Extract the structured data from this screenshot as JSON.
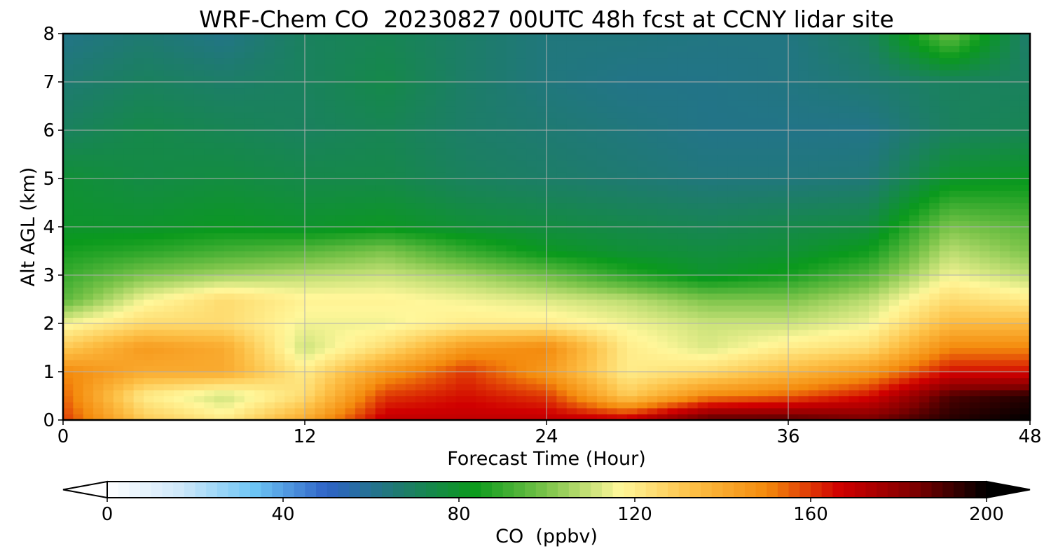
{
  "chart_data": {
    "type": "heatmap",
    "title": "WRF-Chem CO  20230827 00UTC 48h fcst at CCNY lidar site",
    "xlabel": "Forecast Time (Hour)",
    "ylabel": "Alt AGL (km)",
    "xlim": [
      0,
      48
    ],
    "ylim": [
      0,
      8
    ],
    "x_ticks": [
      "0",
      "12",
      "24",
      "36",
      "48"
    ],
    "y_ticks": [
      "0",
      "1",
      "2",
      "3",
      "4",
      "5",
      "6",
      "7",
      "8"
    ],
    "grid": true,
    "colorbar": {
      "label": "CO  (ppbv)",
      "range": [
        0,
        200
      ],
      "ticks": [
        "0",
        "40",
        "80",
        "120",
        "160",
        "200"
      ],
      "extend": "both",
      "orientation": "horizontal",
      "colors": [
        "#ffffff",
        "#cfe8fa",
        "#6ec6f5",
        "#2e63c7",
        "#1e7b6e",
        "#0a9a1c",
        "#7cc44a",
        "#fff79a",
        "#fdbf45",
        "#f48a0c",
        "#d00000",
        "#800000",
        "#000000"
      ]
    },
    "x": [
      0,
      4,
      8,
      12,
      16,
      20,
      24,
      28,
      32,
      36,
      40,
      44,
      48
    ],
    "y": [
      0,
      0.5,
      1,
      1.5,
      2,
      2.5,
      3,
      3.5,
      4,
      5,
      6,
      7,
      8
    ],
    "z": [
      [
        160,
        130,
        120,
        140,
        170,
        170,
        170,
        170,
        190,
        190,
        185,
        195,
        200
      ],
      [
        155,
        120,
        110,
        125,
        160,
        165,
        160,
        130,
        150,
        155,
        165,
        190,
        195
      ],
      [
        150,
        140,
        140,
        120,
        145,
        160,
        145,
        120,
        125,
        135,
        145,
        165,
        165
      ],
      [
        130,
        145,
        140,
        110,
        125,
        145,
        150,
        120,
        112,
        120,
        125,
        150,
        150
      ],
      [
        115,
        125,
        125,
        115,
        115,
        120,
        120,
        115,
        110,
        110,
        115,
        135,
        135
      ],
      [
        95,
        115,
        125,
        118,
        118,
        115,
        112,
        108,
        100,
        100,
        108,
        125,
        120
      ],
      [
        90,
        100,
        105,
        108,
        110,
        105,
        98,
        88,
        80,
        85,
        95,
        115,
        108
      ],
      [
        85,
        88,
        92,
        95,
        100,
        90,
        82,
        78,
        76,
        78,
        84,
        108,
        100
      ],
      [
        80,
        80,
        82,
        80,
        82,
        78,
        76,
        74,
        72,
        74,
        76,
        100,
        95
      ],
      [
        78,
        75,
        76,
        74,
        74,
        70,
        68,
        66,
        64,
        64,
        65,
        80,
        82
      ],
      [
        70,
        74,
        72,
        70,
        72,
        68,
        66,
        64,
        62,
        62,
        62,
        70,
        72
      ],
      [
        66,
        70,
        68,
        70,
        74,
        68,
        64,
        62,
        62,
        63,
        66,
        70,
        70
      ],
      [
        62,
        66,
        62,
        70,
        72,
        68,
        64,
        64,
        63,
        63,
        70,
        98,
        66
      ]
    ]
  }
}
